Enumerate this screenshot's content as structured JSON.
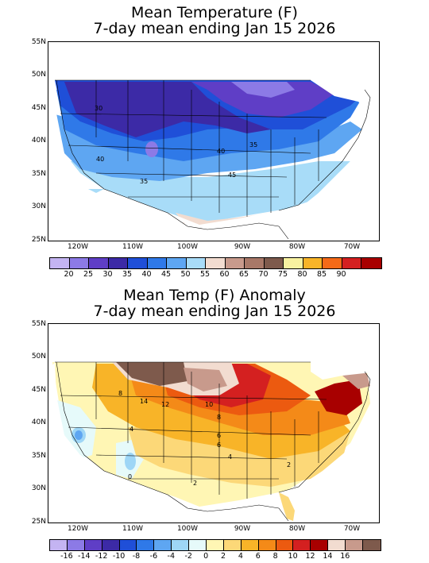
{
  "maps": [
    {
      "title_line1": "Mean Temperature (F)",
      "title_line2": "7-day mean ending Jan 15 2026",
      "lat_labels": [
        "55N",
        "50N",
        "45N",
        "40N",
        "35N",
        "30N",
        "25N"
      ],
      "lon_labels": [
        "120W",
        "110W",
        "100W",
        "90W",
        "80W",
        "70W"
      ],
      "colorbar_colors": [
        "#c4b4f2",
        "#8c7ae6",
        "#5f3ec6",
        "#3c2aa6",
        "#1f4fd8",
        "#2f79e8",
        "#5ea6f2",
        "#a8dcf8",
        "#f2dcd0",
        "#c89a8c",
        "#a87868",
        "#7e5a4c",
        "#f8f2a0",
        "#f8b428",
        "#f46a18",
        "#d42020",
        "#a80000"
      ],
      "colorbar_labels": [
        "20",
        "25",
        "30",
        "35",
        "40",
        "45",
        "50",
        "55",
        "60",
        "65",
        "70",
        "75",
        "80",
        "85",
        "90"
      ],
      "contour_labels": [
        "30",
        "40",
        "35",
        "45",
        "40",
        "35"
      ]
    },
    {
      "title_line1": "Mean Temp (F) Anomaly",
      "title_line2": "7-day mean ending Jan 15 2026",
      "lat_labels": [
        "55N",
        "50N",
        "45N",
        "40N",
        "35N",
        "30N",
        "25N"
      ],
      "lon_labels": [
        "120W",
        "110W",
        "100W",
        "90W",
        "80W",
        "70W"
      ],
      "colorbar_colors": [
        "#c4b4f2",
        "#8c7ae6",
        "#5f3ec6",
        "#3c2aa6",
        "#1f4fd8",
        "#2f79e8",
        "#5ea6f2",
        "#9ed6f6",
        "#e6fafa",
        "#fff6b4",
        "#fcd878",
        "#f8b428",
        "#f48a18",
        "#ec5a10",
        "#d42020",
        "#a80000",
        "#f2dcd0",
        "#c89a8c",
        "#7e5a4c"
      ],
      "colorbar_labels": [
        "-16",
        "-14",
        "-12",
        "-10",
        "-8",
        "-6",
        "-4",
        "-2",
        "0",
        "2",
        "4",
        "6",
        "8",
        "10",
        "12",
        "14",
        "16"
      ],
      "contour_labels": [
        "8",
        "14",
        "12",
        "10",
        "8",
        "6",
        "4",
        "2",
        "4",
        "6",
        "2",
        "0"
      ]
    }
  ]
}
